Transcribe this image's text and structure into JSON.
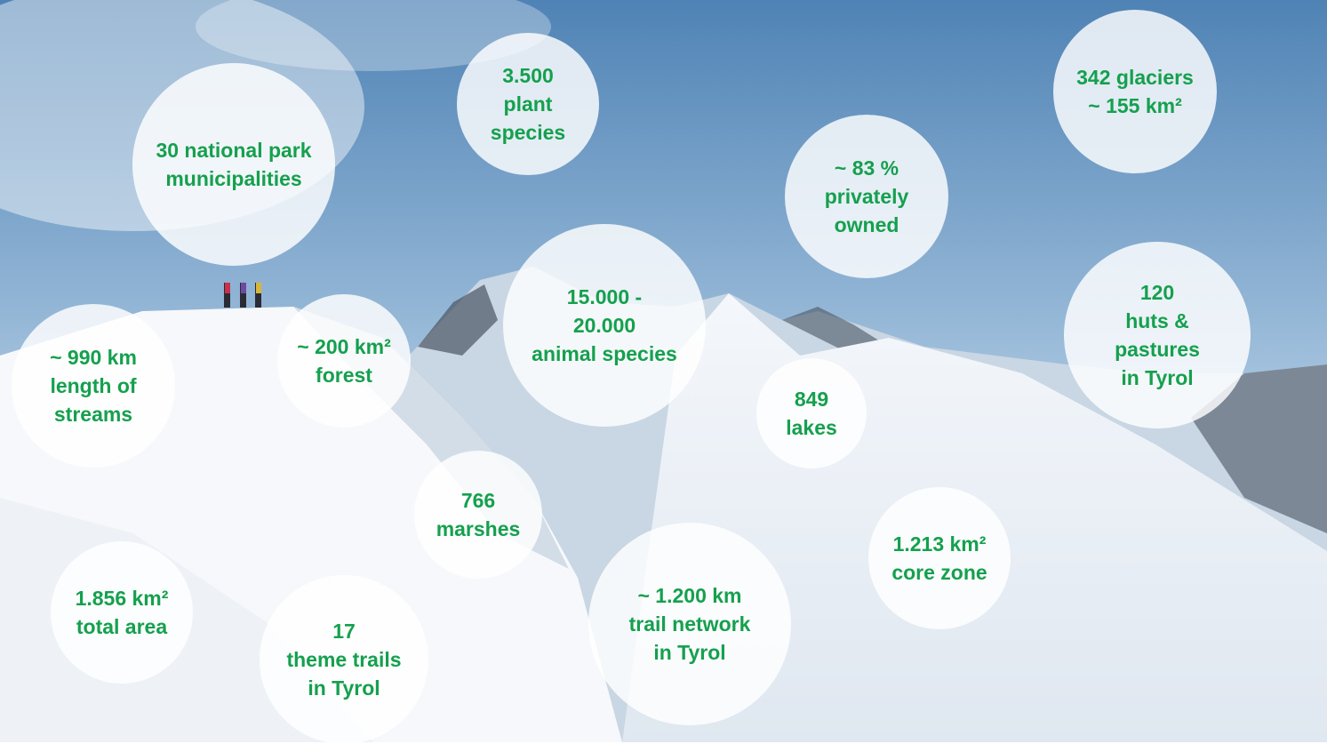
{
  "bubbles": [
    {
      "lines": [
        "30 national park",
        "municipalities"
      ]
    },
    {
      "lines": [
        "3.500",
        "plant",
        "species"
      ]
    },
    {
      "lines": [
        "342 glaciers",
        "~ 155 km²"
      ]
    },
    {
      "lines": [
        "~ 83 %",
        "privately",
        "owned"
      ]
    },
    {
      "lines": [
        "15.000 -",
        "20.000",
        "animal species"
      ]
    },
    {
      "lines": [
        "120",
        "huts &",
        "pastures",
        "in Tyrol"
      ]
    },
    {
      "lines": [
        "~ 990 km",
        "length of",
        "streams"
      ]
    },
    {
      "lines": [
        "~ 200 km²",
        "forest"
      ]
    },
    {
      "lines": [
        "849",
        "lakes"
      ]
    },
    {
      "lines": [
        "766",
        "marshes"
      ]
    },
    {
      "lines": [
        "1.213 km²",
        "core zone"
      ]
    },
    {
      "lines": [
        "1.856 km²",
        "total area"
      ]
    },
    {
      "lines": [
        "17",
        "theme trails",
        "in Tyrol"
      ]
    },
    {
      "lines": [
        "~ 1.200 km",
        "trail network",
        "in Tyrol"
      ]
    }
  ]
}
